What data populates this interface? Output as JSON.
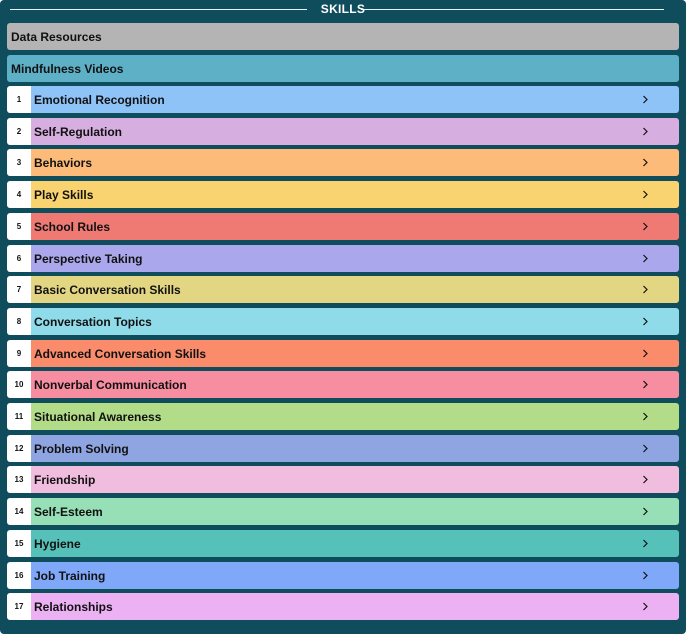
{
  "header": {
    "title": "SKILLS"
  },
  "resources": [
    {
      "label": "Data Resources",
      "color": "#b4b4b4"
    },
    {
      "label": "Mindfulness Videos",
      "color": "#5eb0c6"
    }
  ],
  "skills": [
    {
      "number": "1",
      "label": "Emotional Recognition",
      "color": "#8ec3f8"
    },
    {
      "number": "2",
      "label": "Self-Regulation",
      "color": "#d7aee0"
    },
    {
      "number": "3",
      "label": "Behaviors",
      "color": "#fdbb7a"
    },
    {
      "number": "4",
      "label": "Play Skills",
      "color": "#f9d36f"
    },
    {
      "number": "5",
      "label": "School Rules",
      "color": "#ee7a73"
    },
    {
      "number": "6",
      "label": "Perspective Taking",
      "color": "#aaa7ec"
    },
    {
      "number": "7",
      "label": "Basic Conversation Skills",
      "color": "#e3d683"
    },
    {
      "number": "8",
      "label": "Conversation Topics",
      "color": "#8fdbea"
    },
    {
      "number": "9",
      "label": "Advanced Conversation Skills",
      "color": "#fa8c6b"
    },
    {
      "number": "10",
      "label": "Nonverbal Communication",
      "color": "#f78da1"
    },
    {
      "number": "11",
      "label": "Situational Awareness",
      "color": "#b3dc88"
    },
    {
      "number": "12",
      "label": "Problem Solving",
      "color": "#8fa5e2"
    },
    {
      "number": "13",
      "label": "Friendship",
      "color": "#f1bddf"
    },
    {
      "number": "14",
      "label": "Self-Esteem",
      "color": "#97dfb6"
    },
    {
      "number": "15",
      "label": "Hygiene",
      "color": "#56c1b9"
    },
    {
      "number": "16",
      "label": "Job Training",
      "color": "#80a8f9"
    },
    {
      "number": "17",
      "label": "Relationships",
      "color": "#ebb1f3"
    }
  ],
  "icons": {
    "row_chevron": "chevron-right-icon"
  }
}
